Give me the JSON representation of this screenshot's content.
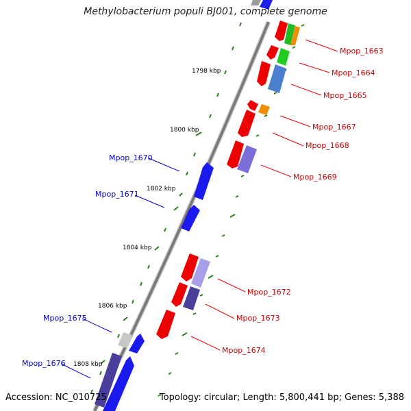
{
  "title": "Methylobacterium populi BJ001, complete genome",
  "footer": {
    "accession": "Accession: NC_010725",
    "topology": "Topology: circular; Length: 5,800,441 bp; Genes: 5,388"
  },
  "colors": {
    "backbone": "#8c8c8c",
    "tick": "#2e7d1e",
    "forward_label": "#0000cc",
    "reverse_label": "#cc0000"
  },
  "kbp_labels": [
    "1798 kbp",
    "1800 kbp",
    "1802 kbp",
    "1804 kbp",
    "1806 kbp",
    "1808 kbp"
  ],
  "gene_labels": {
    "forward": [
      "Mpop_1670",
      "Mpop_1671",
      "Mpop_1675",
      "Mpop_1676"
    ],
    "reverse": [
      "Mpop_1663",
      "Mpop_1664",
      "Mpop_1665",
      "Mpop_1667",
      "Mpop_1668",
      "Mpop_1669",
      "Mpop_1672",
      "Mpop_1673",
      "Mpop_1674"
    ]
  }
}
